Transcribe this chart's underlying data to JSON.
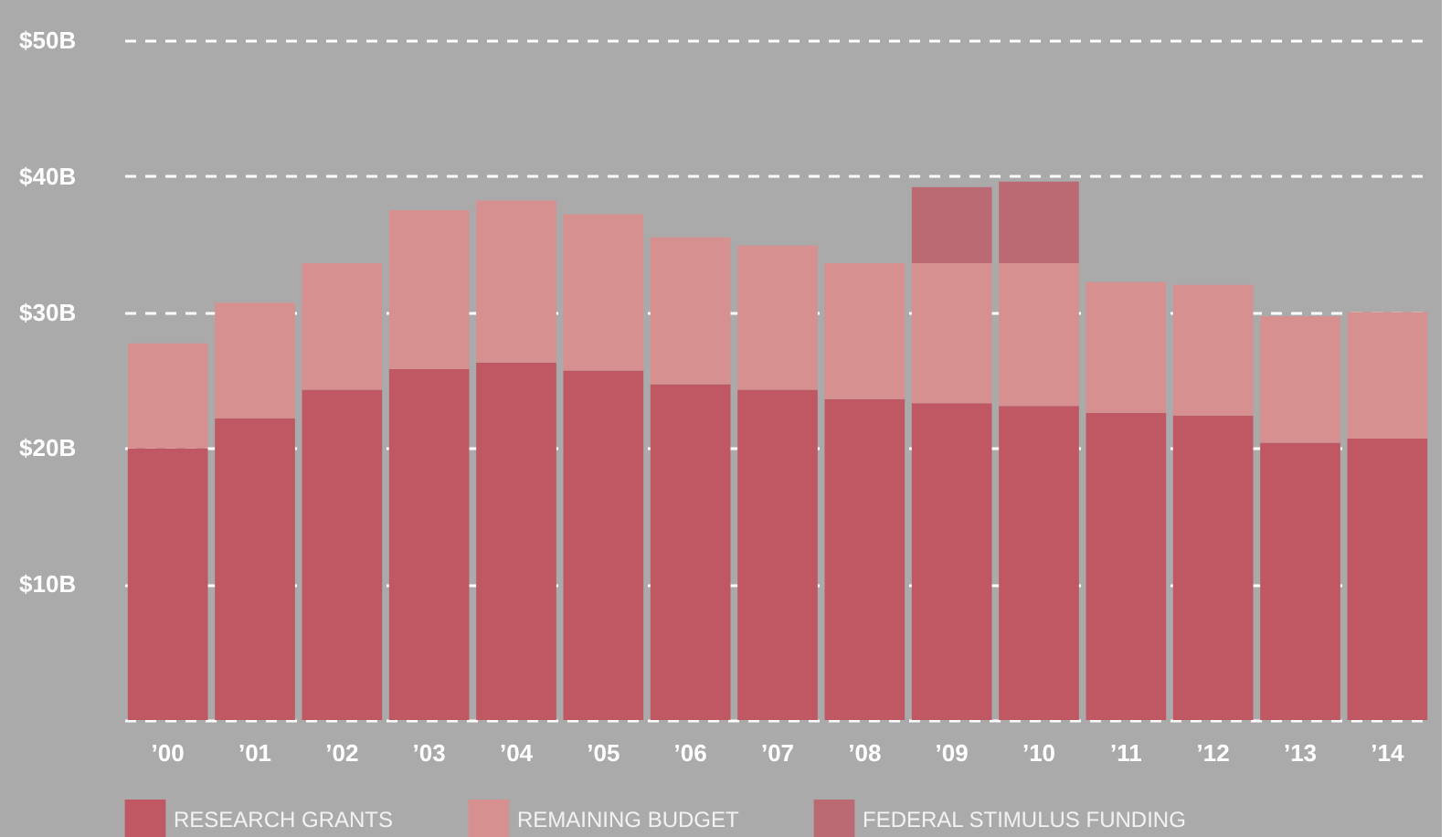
{
  "chart_data": {
    "type": "bar",
    "stacked": true,
    "categories": [
      "’00",
      "’01",
      "’02",
      "’03",
      "’04",
      "’05",
      "’06",
      "’07",
      "’08",
      "’09",
      "’10",
      "’11",
      "’12",
      "’13",
      "’14"
    ],
    "series": [
      {
        "name": "RESEARCH GRANTS",
        "color": "#c05864",
        "values": [
          20.0,
          22.2,
          24.3,
          25.8,
          26.3,
          25.7,
          24.7,
          24.3,
          23.6,
          23.3,
          23.1,
          22.6,
          22.4,
          20.4,
          20.7
        ]
      },
      {
        "name": "REMAINING BUDGET",
        "color": "#d69090",
        "values": [
          7.7,
          8.5,
          9.3,
          11.7,
          11.9,
          11.5,
          10.8,
          10.6,
          10.0,
          10.3,
          10.5,
          9.6,
          9.6,
          9.3,
          9.3
        ]
      },
      {
        "name": "FEDERAL STIMULUS FUNDING",
        "color": "#bb6a74",
        "values": [
          null,
          null,
          null,
          null,
          null,
          null,
          null,
          null,
          null,
          5.6,
          6.0,
          null,
          null,
          null,
          null
        ]
      }
    ],
    "ylim": [
      0,
      50
    ],
    "yticks": [
      {
        "value": 0,
        "label": null
      },
      {
        "value": 10,
        "label": "$10B"
      },
      {
        "value": 20,
        "label": "$20B"
      },
      {
        "value": 30,
        "label": "$30B"
      },
      {
        "value": 40,
        "label": "$40B"
      },
      {
        "value": 50,
        "label": "$50B"
      }
    ],
    "grid": "y",
    "legend": "bottom"
  }
}
